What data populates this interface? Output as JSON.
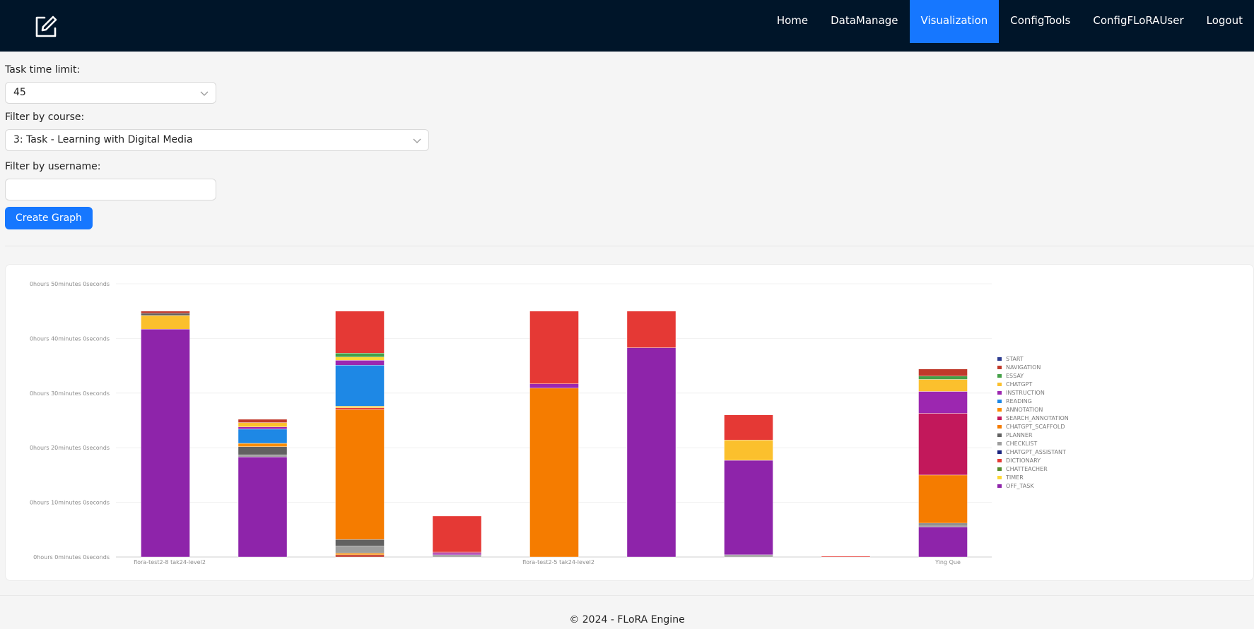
{
  "nav": {
    "items": [
      "Home",
      "DataManage",
      "Visualization",
      "ConfigTools",
      "ConfigFLoRAUser",
      "Logout"
    ],
    "active": "Visualization"
  },
  "form": {
    "time_limit_label": "Task time limit:",
    "time_limit_value": "45",
    "course_label": "Filter by course:",
    "course_value": "3: Task - Learning with Digital Media",
    "username_label": "Filter by username:",
    "username_value": "",
    "create_button": "Create Graph"
  },
  "chart_data": {
    "type": "bar",
    "stacked": true,
    "unit": "minutes",
    "ylim": [
      0,
      50
    ],
    "ytick_values": [
      0,
      10,
      20,
      30,
      40,
      50
    ],
    "ytick_labels": [
      "0hours 0minutes 0seconds",
      "0hours 10minutes 0seconds",
      "0hours 20minutes 0seconds",
      "0hours 30minutes 0seconds",
      "0hours 40minutes 0seconds",
      "0hours 50minutes 0seconds"
    ],
    "x_tick_labels": [
      {
        "bar": 0,
        "text": "flora-test2-8 tak24-level2"
      },
      {
        "bar": 4,
        "text": "flora-test2-5 tak24-level2"
      },
      {
        "bar": 8,
        "text": "Ying Que"
      }
    ],
    "legend_position": "right",
    "grid": true,
    "legend": [
      {
        "name": "START",
        "color": "#2b3a8f"
      },
      {
        "name": "NAVIGATION",
        "color": "#c0392b"
      },
      {
        "name": "ESSAY",
        "color": "#43a047"
      },
      {
        "name": "CHATGPT",
        "color": "#fbc02d"
      },
      {
        "name": "INSTRUCTION",
        "color": "#9c27b0"
      },
      {
        "name": "READING",
        "color": "#1e88e5"
      },
      {
        "name": "ANNOTATION",
        "color": "#fb8c00"
      },
      {
        "name": "SEARCH_ANNOTATION",
        "color": "#c2185b"
      },
      {
        "name": "CHATGPT_SCAFFOLD",
        "color": "#f57c00"
      },
      {
        "name": "PLANNER",
        "color": "#616161"
      },
      {
        "name": "CHECKLIST",
        "color": "#9e9e9e"
      },
      {
        "name": "CHATGPT_ASSISTANT",
        "color": "#1a237e"
      },
      {
        "name": "DICTIONARY",
        "color": "#e53935"
      },
      {
        "name": "CHATTEACHER",
        "color": "#558b2f"
      },
      {
        "name": "TIMER",
        "color": "#fdd835"
      },
      {
        "name": "OFF_TASK",
        "color": "#8e24aa"
      }
    ],
    "bars": [
      {
        "segments": [
          {
            "s": "OFF_TASK",
            "v": 41.7
          },
          {
            "s": "CHATGPT",
            "v": 2.5
          },
          {
            "s": "PLANNER",
            "v": 0.4
          },
          {
            "s": "NAVIGATION",
            "v": 0.4
          }
        ]
      },
      {
        "segments": [
          {
            "s": "OFF_TASK",
            "v": 18.3
          },
          {
            "s": "CHECKLIST",
            "v": 0.4
          },
          {
            "s": "PLANNER",
            "v": 1.5
          },
          {
            "s": "ANNOTATION",
            "v": 0.6
          },
          {
            "s": "READING",
            "v": 2.6
          },
          {
            "s": "INSTRUCTION",
            "v": 0.4
          },
          {
            "s": "CHATGPT",
            "v": 0.8
          },
          {
            "s": "NAVIGATION",
            "v": 0.6
          }
        ]
      },
      {
        "segments": [
          {
            "s": "NAVIGATION",
            "v": 0.4
          },
          {
            "s": "ANNOTATION",
            "v": 0.3
          },
          {
            "s": "CHECKLIST",
            "v": 1.3
          },
          {
            "s": "PLANNER",
            "v": 1.2
          },
          {
            "s": "CHATGPT_SCAFFOLD",
            "v": 23.8
          },
          {
            "s": "DICTIONARY",
            "v": 0.3
          },
          {
            "s": "CHATGPT",
            "v": 0.3
          },
          {
            "s": "READING",
            "v": 7.5
          },
          {
            "s": "INSTRUCTION",
            "v": 0.9
          },
          {
            "s": "TIMER",
            "v": 0.6
          },
          {
            "s": "ESSAY",
            "v": 0.7
          },
          {
            "s": "DICTIONARY",
            "v": 7.7
          }
        ]
      },
      {
        "segments": [
          {
            "s": "CHECKLIST",
            "v": 0.4
          },
          {
            "s": "INSTRUCTION",
            "v": 0.3
          },
          {
            "s": "SEARCH_ANNOTATION",
            "v": 0.2
          },
          {
            "s": "DICTIONARY",
            "v": 6.6
          }
        ]
      },
      {
        "segments": [
          {
            "s": "CHATGPT_SCAFFOLD",
            "v": 30.9
          },
          {
            "s": "INSTRUCTION",
            "v": 0.8
          },
          {
            "s": "DICTIONARY",
            "v": 13.3
          }
        ]
      },
      {
        "segments": [
          {
            "s": "OFF_TASK",
            "v": 38.3
          },
          {
            "s": "DICTIONARY",
            "v": 6.7
          }
        ]
      },
      {
        "segments": [
          {
            "s": "CHECKLIST",
            "v": 0.4
          },
          {
            "s": "OFF_TASK",
            "v": 17.3
          },
          {
            "s": "CHATGPT",
            "v": 3.7
          },
          {
            "s": "DICTIONARY",
            "v": 4.6
          }
        ]
      },
      {
        "segments": [
          {
            "s": "DICTIONARY",
            "v": 0.15
          }
        ]
      },
      {
        "segments": [
          {
            "s": "OFF_TASK",
            "v": 5.5
          },
          {
            "s": "CHECKLIST",
            "v": 0.4
          },
          {
            "s": "PLANNER",
            "v": 0.3
          },
          {
            "s": "CHATGPT_SCAFFOLD",
            "v": 8.8
          },
          {
            "s": "SEARCH_ANNOTATION",
            "v": 11.3
          },
          {
            "s": "INSTRUCTION",
            "v": 4.0
          },
          {
            "s": "CHATGPT",
            "v": 2.2
          },
          {
            "s": "ESSAY",
            "v": 0.6
          },
          {
            "s": "NAVIGATION",
            "v": 1.3
          }
        ]
      }
    ]
  },
  "footer": {
    "text": "© 2024 - FLoRA Engine"
  }
}
